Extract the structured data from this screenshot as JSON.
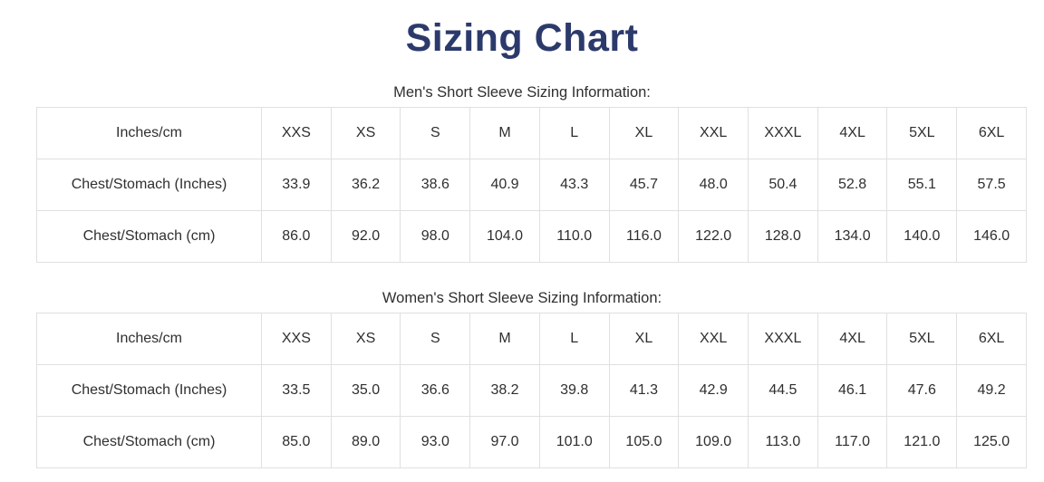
{
  "page": {
    "title": "Sizing Chart"
  },
  "colors": {
    "title": "#2c3a6b",
    "text": "#2f2f2f",
    "table_border": "#e0e0e0",
    "background": "#ffffff"
  },
  "tables": [
    {
      "subtitle": "Men's Short Sleeve Sizing Information:",
      "header": [
        "Inches/cm",
        "XXS",
        "XS",
        "S",
        "M",
        "L",
        "XL",
        "XXL",
        "XXXL",
        "4XL",
        "5XL",
        "6XL"
      ],
      "rows": [
        [
          "Chest/Stomach (Inches)",
          "33.9",
          "36.2",
          "38.6",
          "40.9",
          "43.3",
          "45.7",
          "48.0",
          "50.4",
          "52.8",
          "55.1",
          "57.5"
        ],
        [
          "Chest/Stomach (cm)",
          "86.0",
          "92.0",
          "98.0",
          "104.0",
          "110.0",
          "116.0",
          "122.0",
          "128.0",
          "134.0",
          "140.0",
          "146.0"
        ]
      ]
    },
    {
      "subtitle": "Women's Short Sleeve Sizing Information:",
      "header": [
        "Inches/cm",
        "XXS",
        "XS",
        "S",
        "M",
        "L",
        "XL",
        "XXL",
        "XXXL",
        "4XL",
        "5XL",
        "6XL"
      ],
      "rows": [
        [
          "Chest/Stomach (Inches)",
          "33.5",
          "35.0",
          "36.6",
          "38.2",
          "39.8",
          "41.3",
          "42.9",
          "44.5",
          "46.1",
          "47.6",
          "49.2"
        ],
        [
          "Chest/Stomach (cm)",
          "85.0",
          "89.0",
          "93.0",
          "97.0",
          "101.0",
          "105.0",
          "109.0",
          "113.0",
          "117.0",
          "121.0",
          "125.0"
        ]
      ]
    }
  ],
  "chart_data": [
    {
      "type": "table",
      "title": "Men's Short Sleeve Sizing Information",
      "categories": [
        "XXS",
        "XS",
        "S",
        "M",
        "L",
        "XL",
        "XXL",
        "XXXL",
        "4XL",
        "5XL",
        "6XL"
      ],
      "series": [
        {
          "name": "Chest/Stomach (Inches)",
          "values": [
            33.9,
            36.2,
            38.6,
            40.9,
            43.3,
            45.7,
            48.0,
            50.4,
            52.8,
            55.1,
            57.5
          ]
        },
        {
          "name": "Chest/Stomach (cm)",
          "values": [
            86.0,
            92.0,
            98.0,
            104.0,
            110.0,
            116.0,
            122.0,
            128.0,
            134.0,
            140.0,
            146.0
          ]
        }
      ]
    },
    {
      "type": "table",
      "title": "Women's Short Sleeve Sizing Information",
      "categories": [
        "XXS",
        "XS",
        "S",
        "M",
        "L",
        "XL",
        "XXL",
        "XXXL",
        "4XL",
        "5XL",
        "6XL"
      ],
      "series": [
        {
          "name": "Chest/Stomach (Inches)",
          "values": [
            33.5,
            35.0,
            36.6,
            38.2,
            39.8,
            41.3,
            42.9,
            44.5,
            46.1,
            47.6,
            49.2
          ]
        },
        {
          "name": "Chest/Stomach (cm)",
          "values": [
            85.0,
            89.0,
            93.0,
            97.0,
            101.0,
            105.0,
            109.0,
            113.0,
            117.0,
            121.0,
            125.0
          ]
        }
      ]
    }
  ]
}
